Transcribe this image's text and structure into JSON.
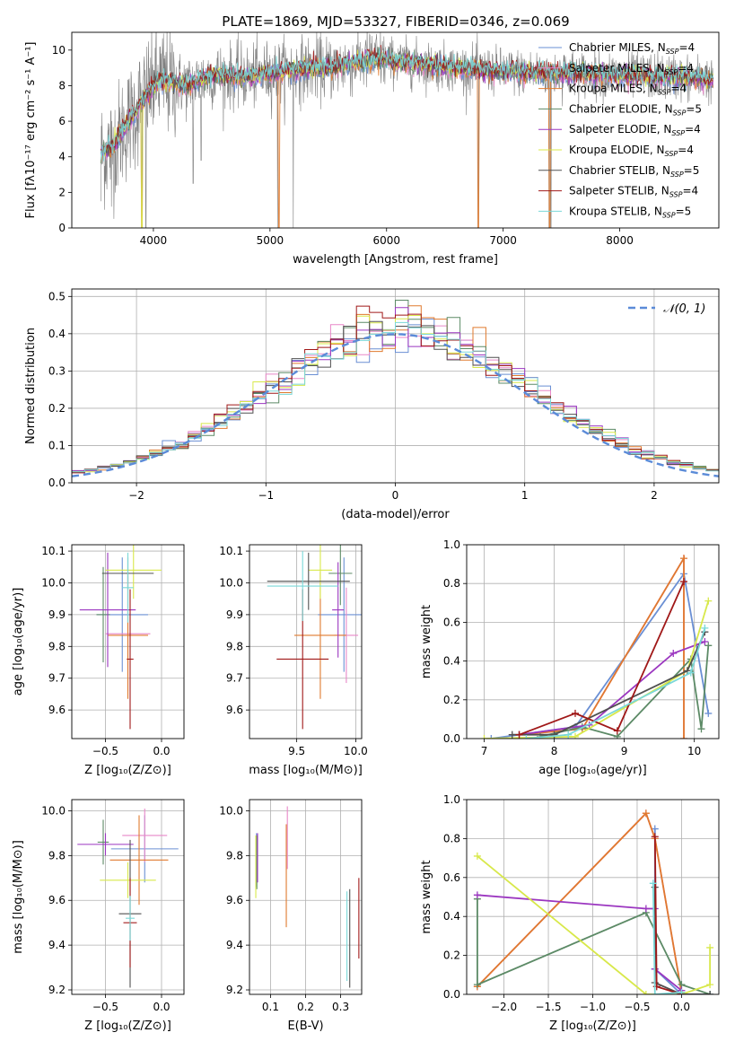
{
  "colors": {
    "Chabrier MILES": "#6a8fd4",
    "Salpeter MILES": "#e887c8",
    "Kroupa MILES": "#e07a2e",
    "Chabrier ELODIE": "#5c8a66",
    "Salpeter ELODIE": "#9b36c0",
    "Kroupa ELODIE": "#d8e84a",
    "Chabrier STELIB": "#505050",
    "Salpeter STELIB": "#a01818",
    "Kroupa STELIB": "#7ad8d8"
  },
  "chart_data": [
    {
      "id": "spectrum",
      "type": "line",
      "title": "PLATE=1869, MJD=53327, FIBERID=0346, z=0.069",
      "xlabel": "wavelength [Angstrom, rest frame]",
      "ylabel": "Flux [fλ10⁻¹⁷ erg cm⁻² s⁻¹ A⁻¹]",
      "xlim": [
        3300,
        8850
      ],
      "ylim": [
        0,
        11
      ],
      "xticks": [
        4000,
        5000,
        6000,
        7000,
        8000
      ],
      "yticks": [
        0,
        2,
        4,
        6,
        8,
        10
      ],
      "legend_position": "top-right",
      "legend": [
        {
          "model": "Chabrier MILES",
          "label": "Chabrier MILES, N",
          "sub": "SSP",
          "suffix": "=4"
        },
        {
          "model": "Salpeter MILES",
          "label": "Salpeter MILES, N",
          "sub": "SSP",
          "suffix": "=4"
        },
        {
          "model": "Kroupa MILES",
          "label": "Kroupa MILES, N",
          "sub": "SSP",
          "suffix": "=4"
        },
        {
          "model": "Chabrier ELODIE",
          "label": "Chabrier ELODIE, N",
          "sub": "SSP",
          "suffix": "=5"
        },
        {
          "model": "Salpeter ELODIE",
          "label": "Salpeter ELODIE, N",
          "sub": "SSP",
          "suffix": "=4"
        },
        {
          "model": "Kroupa ELODIE",
          "label": "Kroupa ELODIE, N",
          "sub": "SSP",
          "suffix": "=4"
        },
        {
          "model": "Chabrier STELIB",
          "label": "Chabrier STELIB, N",
          "sub": "SSP",
          "suffix": "=5"
        },
        {
          "model": "Salpeter STELIB",
          "label": "Salpeter STELIB, N",
          "sub": "SSP",
          "suffix": "=4"
        },
        {
          "model": "Kroupa STELIB",
          "label": "Kroupa STELIB, N",
          "sub": "SSP",
          "suffix": "=5"
        }
      ],
      "data_range": [
        3550,
        8800
      ],
      "continuum": [
        [
          3550,
          4.2
        ],
        [
          3650,
          4.6
        ],
        [
          3750,
          5.6
        ],
        [
          3850,
          6.6
        ],
        [
          3950,
          7.6
        ],
        [
          4050,
          8.3
        ],
        [
          4300,
          8.0
        ],
        [
          4500,
          8.6
        ],
        [
          4800,
          8.5
        ],
        [
          5200,
          8.9
        ],
        [
          5500,
          9.0
        ],
        [
          5900,
          9.5
        ],
        [
          6300,
          9.2
        ],
        [
          6600,
          9.0
        ],
        [
          7000,
          8.8
        ],
        [
          7500,
          8.7
        ],
        [
          8000,
          8.6
        ],
        [
          8500,
          8.5
        ],
        [
          8800,
          8.3
        ]
      ],
      "data_dips": [
        [
          3550,
          1.5
        ],
        [
          3640,
          1.2
        ],
        [
          3680,
          2.4
        ],
        [
          3900,
          0.6
        ],
        [
          3935,
          0
        ],
        [
          4340,
          2.5
        ],
        [
          4410,
          3.8
        ],
        [
          5065,
          0
        ],
        [
          5200,
          0
        ],
        [
          6785,
          0
        ],
        [
          7395,
          0
        ],
        [
          7410,
          0
        ]
      ],
      "model_dips": [
        [
          3900,
          0
        ],
        [
          5075,
          0
        ],
        [
          6785,
          0
        ],
        [
          7400,
          0
        ]
      ]
    },
    {
      "id": "residuals",
      "type": "histogram",
      "xlabel": "(data-model)/error",
      "ylabel": "Normed distribution",
      "xlim": [
        -2.5,
        2.5
      ],
      "ylim": [
        0,
        0.52
      ],
      "xticks": [
        -2,
        -1,
        0,
        1,
        2
      ],
      "yticks": [
        0.0,
        0.1,
        0.2,
        0.3,
        0.4,
        0.5
      ],
      "legend_position": "top-right",
      "reference_curve": {
        "label": "𝒩(0, 1)",
        "mean": 0,
        "sigma": 1,
        "color": "#5b8bd8",
        "style": "dashed"
      },
      "bin_width": 0.1,
      "peak_values": {
        "Chabrier MILES": 0.35,
        "Salpeter MILES": 0.39,
        "Kroupa MILES": 0.41,
        "Chabrier ELODIE": 0.49,
        "Salpeter ELODIE": 0.47,
        "Kroupa ELODIE": 0.44,
        "Chabrier STELIB": 0.42,
        "Salpeter STELIB": 0.45,
        "Kroupa STELIB": 0.43
      }
    },
    {
      "id": "age-vs-Z",
      "type": "errorbar",
      "xlabel": "Z [log₁₀(Z/Z⊙)]",
      "ylabel": "age  [log₁₀(age/yr)]",
      "xlim": [
        -0.8,
        0.2
      ],
      "ylim": [
        9.51,
        10.12
      ],
      "xticks": [
        -0.5,
        0.0
      ],
      "yticks": [
        9.6,
        9.7,
        9.8,
        9.9,
        10.0,
        10.1
      ],
      "points": [
        {
          "model": "Chabrier MILES",
          "x": -0.35,
          "xerr": 0.23,
          "y": 9.9,
          "yerr": 0.18
        },
        {
          "model": "Salpeter MILES",
          "x": -0.3,
          "xerr": 0.2,
          "y": 9.84,
          "yerr": 0.18
        },
        {
          "model": "Kroupa MILES",
          "x": -0.3,
          "xerr": 0.18,
          "y": 9.835,
          "yerr": 0.2
        },
        {
          "model": "Chabrier ELODIE",
          "x": -0.52,
          "xerr": 0.06,
          "y": 9.9,
          "yerr": 0.15
        },
        {
          "model": "Salpeter ELODIE",
          "x": -0.48,
          "xerr": 0.25,
          "y": 9.915,
          "yerr": 0.18
        },
        {
          "model": "Kroupa ELODIE",
          "x": -0.25,
          "xerr": 0.25,
          "y": 10.04,
          "yerr": 0.09
        },
        {
          "model": "Chabrier STELIB",
          "x": -0.3,
          "xerr": 0.23,
          "y": 10.03,
          "yerr": 0.05
        },
        {
          "model": "Salpeter STELIB",
          "x": -0.28,
          "xerr": 0.03,
          "y": 9.76,
          "yerr": 0.22
        },
        {
          "model": "Kroupa STELIB",
          "x": -0.3,
          "xerr": 0.05,
          "y": 9.985,
          "yerr": 0.11
        }
      ]
    },
    {
      "id": "age-vs-mass",
      "type": "errorbar",
      "xlabel": "mass [log₁₀(M/M⊙)]",
      "xlim": [
        9.1,
        10.05
      ],
      "ylim": [
        9.51,
        10.12
      ],
      "xticks": [
        9.5,
        10.0
      ],
      "yticks": [
        9.6,
        9.7,
        9.8,
        9.9,
        10.0,
        10.1
      ],
      "points": [
        {
          "model": "Chabrier MILES",
          "x": 9.9,
          "xerr": 0.22,
          "y": 9.9,
          "yerr": 0.18
        },
        {
          "model": "Salpeter MILES",
          "x": 9.92,
          "xerr": 0.1,
          "y": 9.835,
          "yerr": 0.15
        },
        {
          "model": "Kroupa MILES",
          "x": 9.7,
          "xerr": 0.22,
          "y": 9.835,
          "yerr": 0.2
        },
        {
          "model": "Chabrier ELODIE",
          "x": 9.87,
          "xerr": 0.1,
          "y": 10.03,
          "yerr": 0.1
        },
        {
          "model": "Salpeter ELODIE",
          "x": 9.85,
          "xerr": 0.05,
          "y": 9.915,
          "yerr": 0.15
        },
        {
          "model": "Kroupa ELODIE",
          "x": 9.7,
          "xerr": 0.1,
          "y": 10.04,
          "yerr": 0.09
        },
        {
          "model": "Chabrier STELIB",
          "x": 9.6,
          "xerr": 0.35,
          "y": 10.005,
          "yerr": 0.09
        },
        {
          "model": "Salpeter STELIB",
          "x": 9.55,
          "xerr": 0.22,
          "y": 9.76,
          "yerr": 0.22
        },
        {
          "model": "Kroupa STELIB",
          "x": 9.55,
          "xerr": 0.3,
          "y": 9.99,
          "yerr": 0.11
        }
      ]
    },
    {
      "id": "weight-vs-age",
      "type": "line",
      "xlabel": "age  [log₁₀(age/yr)]",
      "ylabel": "mass weight",
      "xlim": [
        6.75,
        10.35
      ],
      "ylim": [
        0,
        1.0
      ],
      "xticks": [
        7,
        8,
        9,
        10
      ],
      "yticks": [
        0.0,
        0.2,
        0.4,
        0.6,
        0.8,
        1.0
      ],
      "series": [
        {
          "model": "Chabrier MILES",
          "x": [
            7.1,
            8.3,
            9.85,
            10.2
          ],
          "y": [
            0.0,
            0.06,
            0.85,
            0.13
          ]
        },
        {
          "model": "Salpeter MILES",
          "x": [
            7.5,
            8.4,
            9.85,
            9.85
          ],
          "y": [
            0.02,
            0.05,
            0.93,
            0.0
          ]
        },
        {
          "model": "Kroupa MILES",
          "x": [
            7.5,
            8.4,
            9.85,
            9.85
          ],
          "y": [
            0.02,
            0.05,
            0.93,
            0.0
          ]
        },
        {
          "model": "Chabrier ELODIE",
          "x": [
            7.8,
            8.4,
            8.9,
            9.95,
            10.1,
            10.2
          ],
          "y": [
            0.01,
            0.06,
            0.01,
            0.41,
            0.05,
            0.48
          ]
        },
        {
          "model": "Salpeter ELODIE",
          "x": [
            7.5,
            8.5,
            9.7,
            10.15
          ],
          "y": [
            0.02,
            0.07,
            0.44,
            0.5
          ]
        },
        {
          "model": "Kroupa ELODIE",
          "x": [
            7.0,
            8.3,
            9.9,
            10.2
          ],
          "y": [
            0.0,
            0.01,
            0.35,
            0.71
          ]
        },
        {
          "model": "Chabrier STELIB",
          "x": [
            7.4,
            8.0,
            9.9,
            10.15
          ],
          "y": [
            0.02,
            0.02,
            0.35,
            0.55
          ]
        },
        {
          "model": "Salpeter STELIB",
          "x": [
            7.5,
            8.3,
            8.9,
            9.85
          ],
          "y": [
            0.02,
            0.13,
            0.04,
            0.81
          ]
        },
        {
          "model": "Kroupa STELIB",
          "x": [
            7.6,
            8.2,
            9.95,
            10.15
          ],
          "y": [
            0.0,
            0.02,
            0.34,
            0.57
          ]
        }
      ]
    },
    {
      "id": "mass-vs-Z",
      "type": "errorbar",
      "xlabel": "Z [log₁₀(Z/Z⊙)]",
      "ylabel": "mass [log₁₀(M/M⊙)]",
      "xlim": [
        -0.8,
        0.2
      ],
      "ylim": [
        9.18,
        10.05
      ],
      "xticks": [
        -0.5,
        0.0
      ],
      "yticks": [
        9.2,
        9.4,
        9.6,
        9.8,
        10.0
      ],
      "points": [
        {
          "model": "Chabrier MILES",
          "x": -0.15,
          "xerr": 0.3,
          "y": 9.83,
          "yerr": 0.15
        },
        {
          "model": "Salpeter MILES",
          "x": -0.15,
          "xerr": 0.2,
          "y": 9.89,
          "yerr": 0.12
        },
        {
          "model": "Kroupa MILES",
          "x": -0.2,
          "xerr": 0.26,
          "y": 9.78,
          "yerr": 0.2
        },
        {
          "model": "Chabrier ELODIE",
          "x": -0.52,
          "xerr": 0.05,
          "y": 9.86,
          "yerr": 0.1
        },
        {
          "model": "Salpeter ELODIE",
          "x": -0.5,
          "xerr": 0.25,
          "y": 9.85,
          "yerr": 0.05
        },
        {
          "model": "Kroupa ELODIE",
          "x": -0.3,
          "xerr": 0.25,
          "y": 9.69,
          "yerr": 0.08
        },
        {
          "model": "Chabrier STELIB",
          "x": -0.28,
          "xerr": 0.1,
          "y": 9.54,
          "yerr": 0.33
        },
        {
          "model": "Salpeter STELIB",
          "x": -0.28,
          "xerr": 0.06,
          "y": 9.5,
          "yerr": 0.2
        },
        {
          "model": "Kroupa STELIB",
          "x": -0.28,
          "xerr": 0.04,
          "y": 9.52,
          "yerr": 0.1
        }
      ]
    },
    {
      "id": "mass-vs-EBV",
      "type": "errorbar",
      "xlabel": "E(B-V)",
      "xlim": [
        0.04,
        0.36
      ],
      "ylim": [
        9.18,
        10.05
      ],
      "xticks": [
        0.1,
        0.2,
        0.3
      ],
      "yticks": [
        9.2,
        9.4,
        9.6,
        9.8,
        10.0
      ],
      "points": [
        {
          "model": "Chabrier MILES",
          "x": 0.06,
          "xerr": 0,
          "y": 9.78,
          "yerr": 0.12
        },
        {
          "model": "Salpeter MILES",
          "x": 0.148,
          "xerr": 0,
          "y": 9.88,
          "yerr": 0.14
        },
        {
          "model": "Kroupa MILES",
          "x": 0.145,
          "xerr": 0,
          "y": 9.71,
          "yerr": 0.23
        },
        {
          "model": "Chabrier ELODIE",
          "x": 0.061,
          "xerr": 0,
          "y": 9.77,
          "yerr": 0.12
        },
        {
          "model": "Salpeter ELODIE",
          "x": 0.063,
          "xerr": 0,
          "y": 9.79,
          "yerr": 0.11
        },
        {
          "model": "Kroupa ELODIE",
          "x": 0.058,
          "xerr": 0,
          "y": 9.75,
          "yerr": 0.14
        },
        {
          "model": "Chabrier STELIB",
          "x": 0.326,
          "xerr": 0,
          "y": 9.43,
          "yerr": 0.22
        },
        {
          "model": "Salpeter STELIB",
          "x": 0.352,
          "xerr": 0,
          "y": 9.52,
          "yerr": 0.18
        },
        {
          "model": "Kroupa STELIB",
          "x": 0.318,
          "xerr": 0,
          "y": 9.44,
          "yerr": 0.2
        }
      ]
    },
    {
      "id": "weight-vs-Z",
      "type": "line",
      "xlabel": "Z [log₁₀(Z/Z⊙)]",
      "ylabel": "mass weight",
      "xlim": [
        -2.42,
        0.42
      ],
      "ylim": [
        0,
        1.0
      ],
      "xticks": [
        -2.0,
        -1.5,
        -1.0,
        -0.5,
        0.0
      ],
      "yticks": [
        0.0,
        0.2,
        0.4,
        0.6,
        0.8,
        1.0
      ],
      "series": [
        {
          "model": "Chabrier MILES",
          "x": [
            -0.3,
            -0.3,
            0.0,
            0.32
          ],
          "y": [
            0.85,
            0.13,
            0.0,
            0.0
          ]
        },
        {
          "model": "Salpeter MILES",
          "x": [
            -2.3,
            -0.4,
            -0.3,
            0.0
          ],
          "y": [
            0.04,
            0.93,
            0.8,
            0.01
          ]
        },
        {
          "model": "Kroupa MILES",
          "x": [
            -2.3,
            -0.4,
            -0.3,
            0.0
          ],
          "y": [
            0.04,
            0.93,
            0.8,
            0.01
          ]
        },
        {
          "model": "Chabrier ELODIE",
          "x": [
            -2.3,
            -2.3,
            -0.4,
            0.0,
            0.32
          ],
          "y": [
            0.49,
            0.05,
            0.42,
            0.05,
            0.0
          ]
        },
        {
          "model": "Salpeter ELODIE",
          "x": [
            -2.3,
            -0.4,
            -0.3,
            -0.3,
            0.0
          ],
          "y": [
            0.51,
            0.44,
            0.44,
            0.13,
            0.02
          ]
        },
        {
          "model": "Kroupa ELODIE",
          "x": [
            -2.3,
            -0.4,
            0.0,
            0.32,
            0.32
          ],
          "y": [
            0.71,
            0.0,
            0.0,
            0.05,
            0.24
          ]
        },
        {
          "model": "Chabrier STELIB",
          "x": [
            -0.3,
            -0.3,
            0.0,
            0.32
          ],
          "y": [
            0.55,
            0.06,
            0.0,
            0.0
          ]
        },
        {
          "model": "Salpeter STELIB",
          "x": [
            -0.3,
            -0.28,
            0.0
          ],
          "y": [
            0.81,
            0.04,
            0.0
          ]
        },
        {
          "model": "Kroupa STELIB",
          "x": [
            -0.32,
            -0.3,
            0.0
          ],
          "y": [
            0.57,
            0.0,
            0.01
          ]
        }
      ]
    }
  ]
}
